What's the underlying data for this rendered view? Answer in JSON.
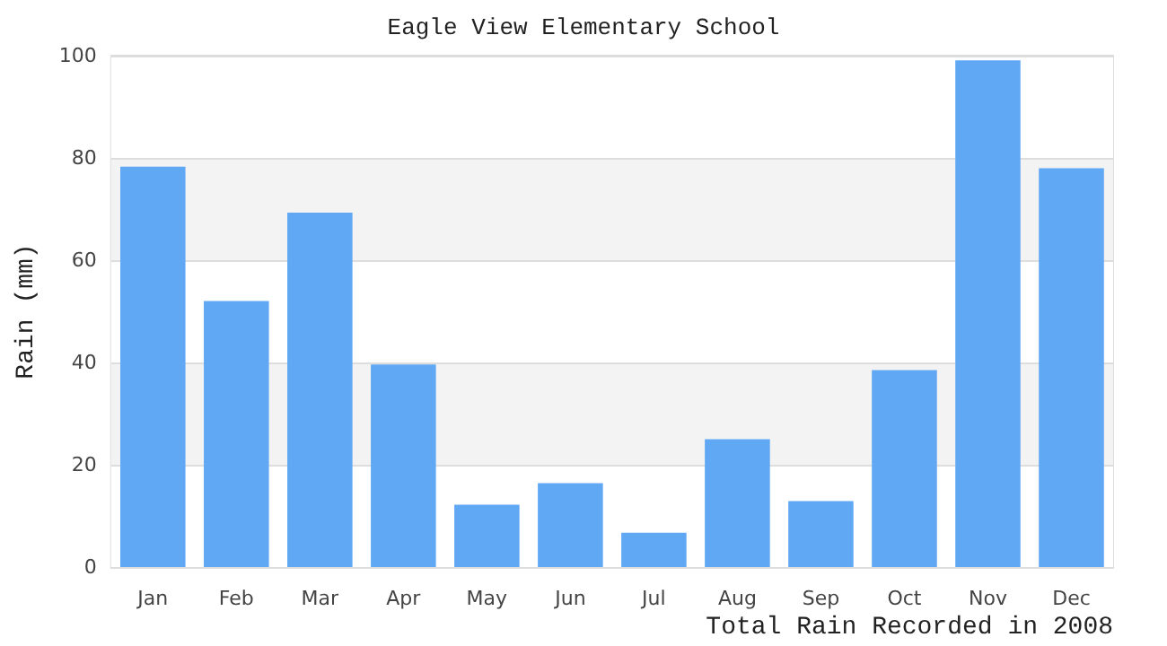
{
  "chart_data": {
    "type": "bar",
    "title": "Eagle View Elementary School",
    "xlabel": "Total Rain Recorded in 2008",
    "ylabel": "Rain (mm)",
    "categories": [
      "Jan",
      "Feb",
      "Mar",
      "Apr",
      "May",
      "Jun",
      "Jul",
      "Aug",
      "Sep",
      "Oct",
      "Nov",
      "Dec"
    ],
    "values": [
      78.3,
      52.0,
      69.3,
      39.6,
      12.2,
      16.4,
      6.7,
      25.0,
      12.9,
      38.5,
      99.1,
      78.0
    ],
    "color": "#60a8f4",
    "ylim": [
      0,
      100
    ],
    "yticks": [
      0,
      20,
      40,
      60,
      80,
      100
    ],
    "grid": "y"
  }
}
